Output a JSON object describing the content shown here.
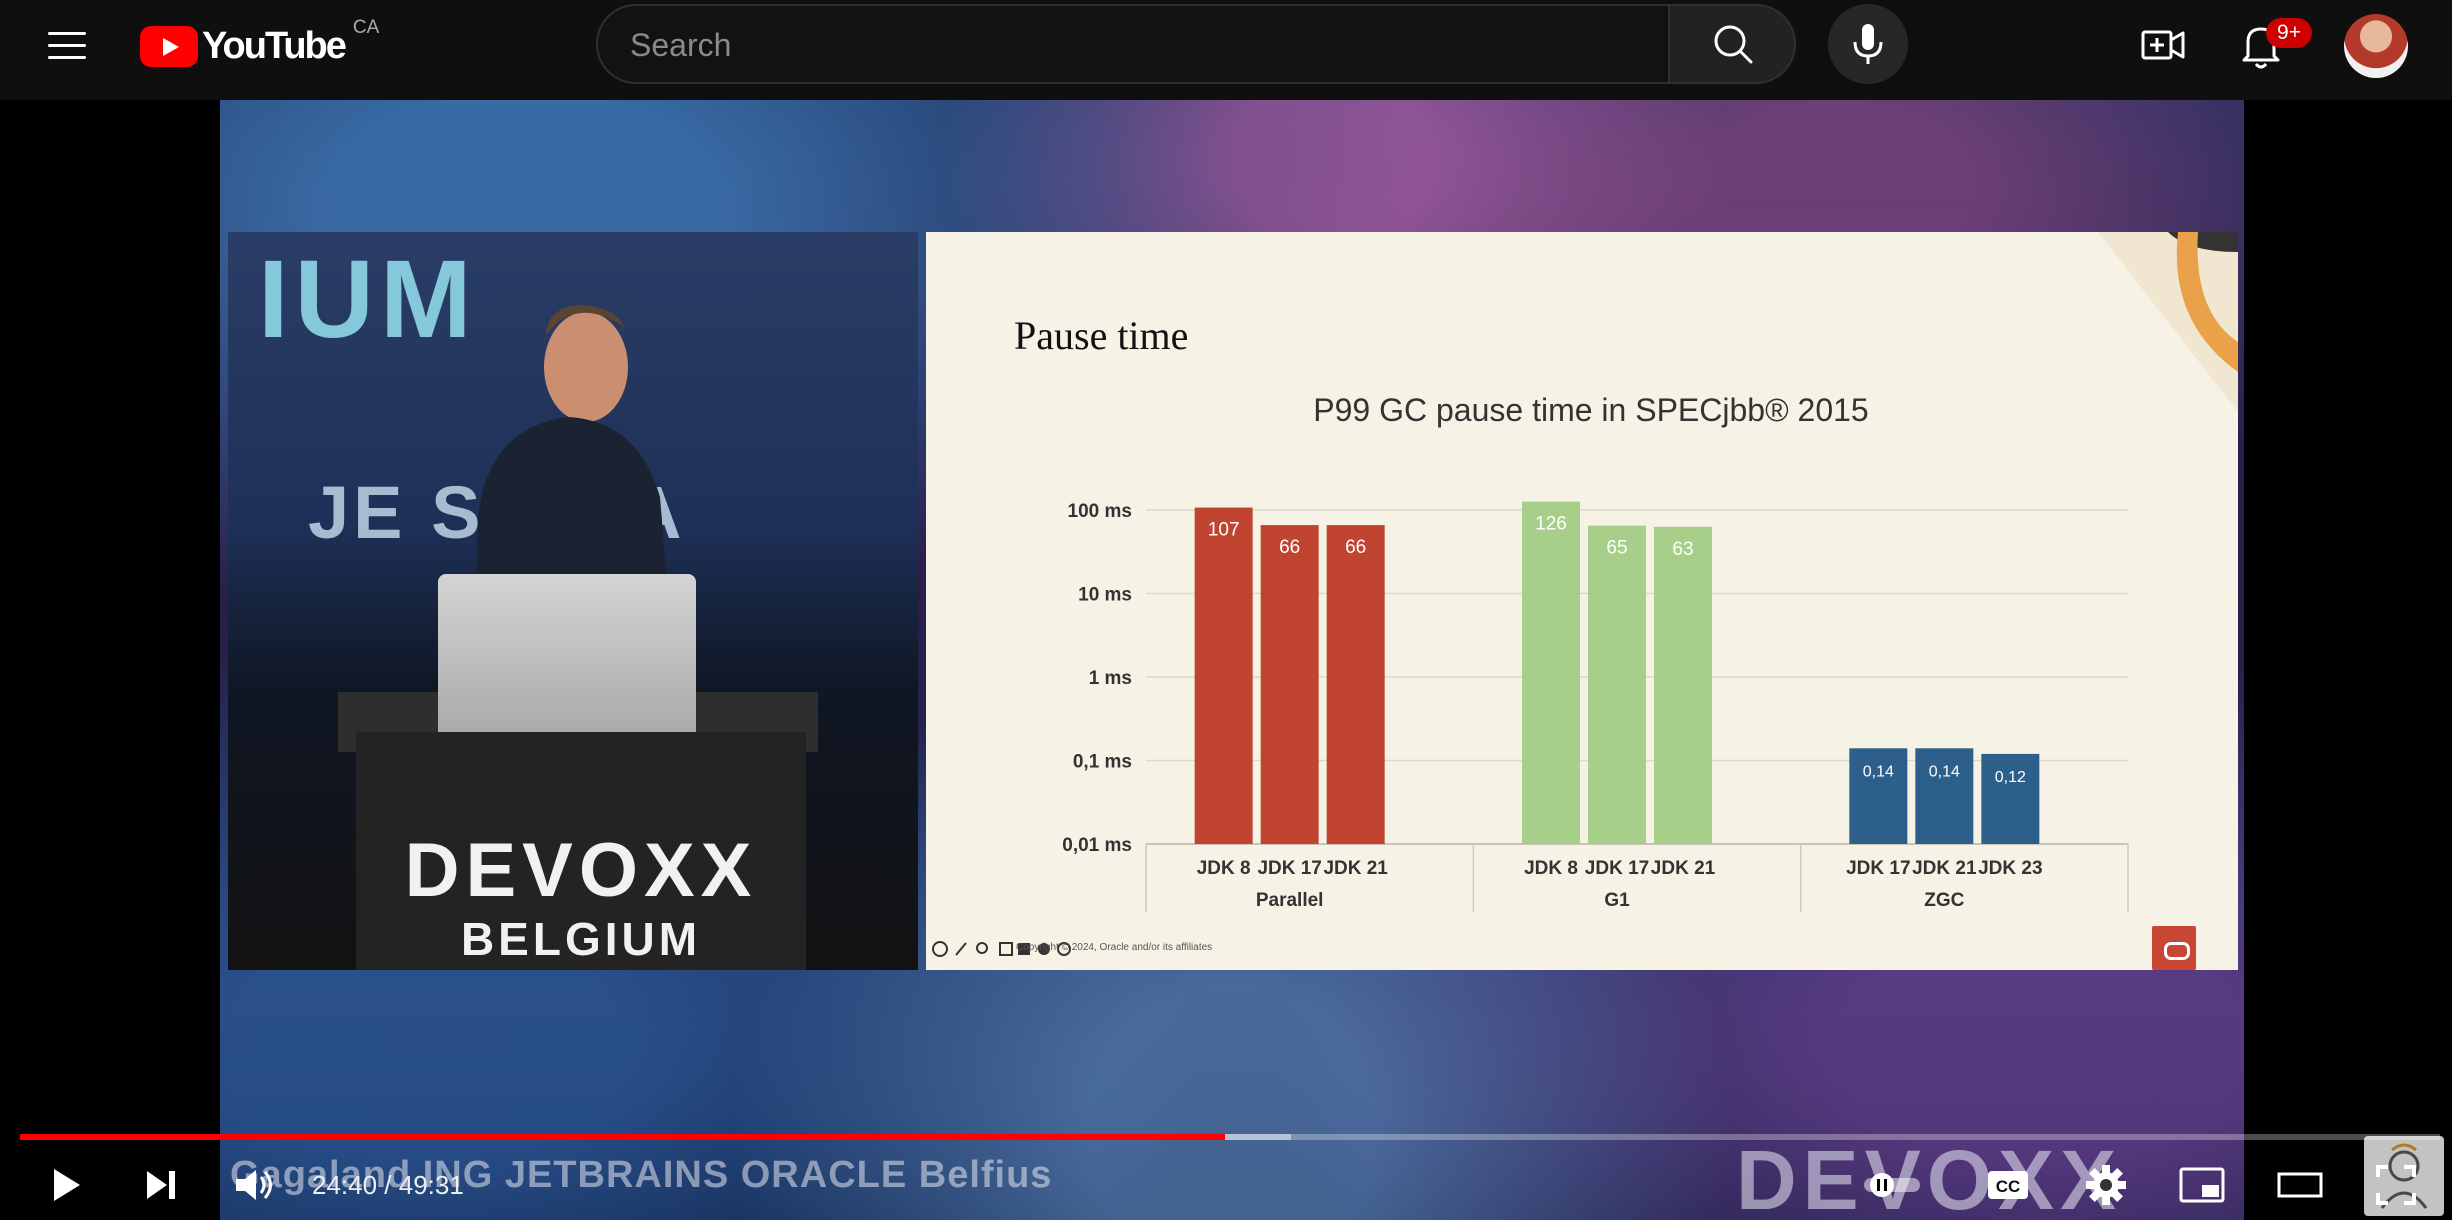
{
  "masthead": {
    "logo_text": "YouTube",
    "country_code": "CA",
    "search_placeholder": "Search",
    "notification_count": "9+"
  },
  "video": {
    "stage": {
      "backdrop_text": "IUM",
      "sponsor_text": "JE    S  ORA",
      "podium_title": "DEVOXX",
      "podium_subtitle": "BELGIUM"
    },
    "slide": {
      "title": "Pause time",
      "footer": "Copyright © 2024, Oracle and/or its affiliates"
    },
    "bottom_sponsors": "Gagaland   ING      JETBRAINS   ORACLE   Belfius",
    "bottom_brand": "DEVOXX"
  },
  "chart_data": {
    "type": "bar",
    "title": "P99 GC pause time in SPECjbb® 2015",
    "y_scale": "log",
    "y_ticks": [
      "100 ms",
      "10 ms",
      "1 ms",
      "0,1 ms",
      "0,01 ms"
    ],
    "ylim_ms": [
      0.01,
      100
    ],
    "groups": [
      {
        "name": "Parallel",
        "color": "#c0442f",
        "bars": [
          {
            "label": "JDK 8",
            "value": 107,
            "display": "107"
          },
          {
            "label": "JDK 17",
            "value": 66,
            "display": "66"
          },
          {
            "label": "JDK 21",
            "value": 66,
            "display": "66"
          }
        ]
      },
      {
        "name": "G1",
        "color": "#a7cf8a",
        "bars": [
          {
            "label": "JDK 8",
            "value": 126,
            "display": "126"
          },
          {
            "label": "JDK 17",
            "value": 65,
            "display": "65"
          },
          {
            "label": "JDK 21",
            "value": 63,
            "display": "63"
          }
        ]
      },
      {
        "name": "ZGC",
        "color": "#2c5f8a",
        "bars": [
          {
            "label": "JDK 17",
            "value": 0.14,
            "display": "0,14"
          },
          {
            "label": "JDK 21",
            "value": 0.14,
            "display": "0,14"
          },
          {
            "label": "JDK 23",
            "value": 0.12,
            "display": "0,12"
          }
        ]
      }
    ]
  },
  "player": {
    "current_time": "24:40",
    "separator": " / ",
    "duration": "49:31",
    "progress_fraction": 0.498,
    "loaded_fraction": 0.525,
    "icons": {
      "play": "play-icon",
      "next": "next-icon",
      "volume": "volume-icon",
      "autoplay": "autoplay-toggle-icon",
      "captions": "captions-icon",
      "settings": "gear-icon",
      "miniplayer": "miniplayer-icon",
      "theater": "theater-mode-icon",
      "fullscreen": "fullscreen-icon"
    }
  }
}
